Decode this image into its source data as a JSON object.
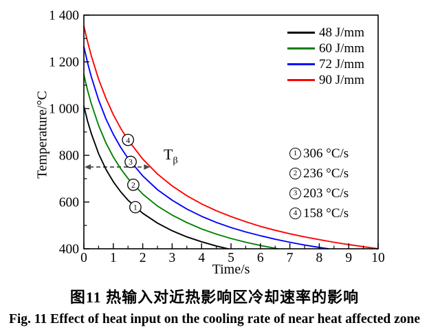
{
  "figure": {
    "caption_zh": "图11  热输入对近热影响区冷却速率的影响",
    "caption_en": "Fig. 11  Effect of heat input on the cooling rate of near heat affected zone"
  },
  "chart_data": {
    "type": "line",
    "title": "",
    "xlabel": "Time/s",
    "ylabel": "Temperature/°C",
    "xlim": [
      0,
      10
    ],
    "ylim": [
      400,
      1400
    ],
    "grid": false,
    "legend_position": "top-right-inside",
    "x_major_ticks": [
      0,
      1,
      2,
      3,
      4,
      5,
      6,
      7,
      8,
      9,
      10
    ],
    "x_tick_labels": [
      "0",
      "1",
      "2",
      "3",
      "4",
      "5",
      "6",
      "7",
      "8",
      "9",
      "10"
    ],
    "x_minor_ticks": [
      0.5,
      1.5,
      2.5,
      3.5,
      4.5,
      5.5,
      6.5,
      7.5,
      8.5,
      9.5
    ],
    "y_major_ticks": [
      400,
      600,
      800,
      1000,
      1200,
      1400
    ],
    "y_tick_labels": [
      "400",
      "600",
      "800",
      "1 000",
      "1 200",
      "1 400"
    ],
    "y_minor_ticks": [
      500,
      700,
      900,
      1100,
      1300
    ],
    "series": [
      {
        "name": "48 J/mm",
        "color": "#000000",
        "points": [
          [
            0,
            1010
          ],
          [
            0.125,
            947
          ],
          [
            0.25,
            894
          ],
          [
            0.5,
            807
          ],
          [
            0.75,
            740
          ],
          [
            1,
            687
          ],
          [
            1.25,
            644
          ],
          [
            1.5,
            608
          ],
          [
            2,
            552
          ],
          [
            2.5,
            510
          ],
          [
            3,
            477
          ],
          [
            3.5,
            451
          ],
          [
            4,
            430
          ],
          [
            4.5,
            412
          ],
          [
            4.9,
            400
          ]
        ]
      },
      {
        "name": "60 J/mm",
        "color": "#008000",
        "points": [
          [
            0,
            1145
          ],
          [
            0.125,
            1079
          ],
          [
            0.25,
            1022
          ],
          [
            0.5,
            928
          ],
          [
            0.75,
            853
          ],
          [
            1,
            793
          ],
          [
            1.25,
            743
          ],
          [
            1.5,
            701
          ],
          [
            2,
            634
          ],
          [
            2.5,
            583
          ],
          [
            3,
            544
          ],
          [
            3.5,
            512
          ],
          [
            4,
            485
          ],
          [
            4.5,
            463
          ],
          [
            5,
            444
          ],
          [
            5.5,
            428
          ],
          [
            6,
            414
          ],
          [
            6.6,
            400
          ]
        ]
      },
      {
        "name": "72 J/mm",
        "color": "#0000ff",
        "points": [
          [
            0,
            1265
          ],
          [
            0.125,
            1197
          ],
          [
            0.25,
            1137
          ],
          [
            0.5,
            1037
          ],
          [
            0.75,
            956
          ],
          [
            1,
            890
          ],
          [
            1.25,
            834
          ],
          [
            1.5,
            787
          ],
          [
            2,
            712
          ],
          [
            2.5,
            653
          ],
          [
            3,
            608
          ],
          [
            3.5,
            570
          ],
          [
            4,
            539
          ],
          [
            4.5,
            513
          ],
          [
            5,
            491
          ],
          [
            5.5,
            472
          ],
          [
            6,
            456
          ],
          [
            6.5,
            441
          ],
          [
            7,
            428
          ],
          [
            7.5,
            416
          ],
          [
            8,
            406
          ],
          [
            8.3,
            400
          ]
        ]
      },
      {
        "name": "90 J/mm",
        "color": "#ff0000",
        "points": [
          [
            0,
            1353
          ],
          [
            0.125,
            1287
          ],
          [
            0.25,
            1227
          ],
          [
            0.5,
            1126
          ],
          [
            0.75,
            1044
          ],
          [
            1,
            974
          ],
          [
            1.25,
            916
          ],
          [
            1.5,
            866
          ],
          [
            2,
            784
          ],
          [
            2.5,
            720
          ],
          [
            3,
            669
          ],
          [
            3.5,
            627
          ],
          [
            4,
            592
          ],
          [
            4.5,
            563
          ],
          [
            5,
            538
          ],
          [
            5.5,
            516
          ],
          [
            6,
            496
          ],
          [
            6.5,
            479
          ],
          [
            7,
            464
          ],
          [
            7.5,
            451
          ],
          [
            8,
            439
          ],
          [
            8.5,
            428
          ],
          [
            9,
            418
          ],
          [
            9.5,
            409
          ],
          [
            10,
            400
          ]
        ]
      }
    ],
    "curve_markers": [
      {
        "label": "1",
        "t": 1.75,
        "temp": 578
      },
      {
        "label": "2",
        "t": 1.68,
        "temp": 674
      },
      {
        "label": "3",
        "t": 1.59,
        "temp": 772
      },
      {
        "label": "4",
        "t": 1.5,
        "temp": 866
      }
    ],
    "arrow": {
      "temp": 750,
      "t_start": 0,
      "t_end": 2.25,
      "color": "#4a4a4a",
      "style": "dashed",
      "double_headed": true
    },
    "t_beta": {
      "main": "T",
      "sub": "β"
    },
    "annotations": [
      {
        "mark": "1",
        "rate": "306 °C/s"
      },
      {
        "mark": "2",
        "rate": "236 °C/s"
      },
      {
        "mark": "3",
        "rate": "203 °C/s"
      },
      {
        "mark": "4",
        "rate": "158 °C/s"
      }
    ],
    "axis_color": "#000000"
  }
}
